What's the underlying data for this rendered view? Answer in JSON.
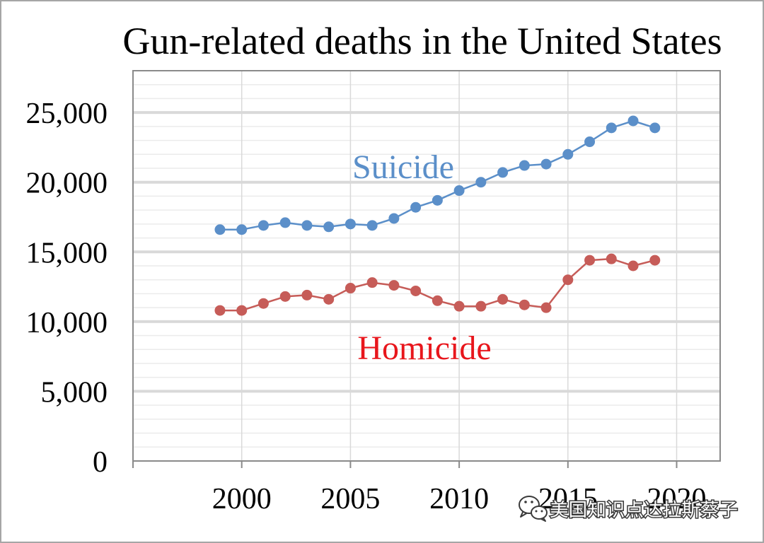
{
  "chart_data": {
    "type": "line",
    "title": "Gun-related deaths in the United States",
    "x": [
      1999,
      2000,
      2001,
      2002,
      2003,
      2004,
      2005,
      2006,
      2007,
      2008,
      2009,
      2010,
      2011,
      2012,
      2013,
      2014,
      2015,
      2016,
      2017,
      2018,
      2019
    ],
    "xlim": [
      1995,
      2022
    ],
    "ylim": [
      0,
      28000
    ],
    "x_ticks": [
      2000,
      2005,
      2010,
      2015,
      2020
    ],
    "x_tick_labels": [
      "2000",
      "2005",
      "2010",
      "2015",
      "2020"
    ],
    "y_ticks": [
      0,
      5000,
      10000,
      15000,
      20000,
      25000
    ],
    "y_tick_labels": [
      "0",
      "5,000",
      "10,000",
      "15,000",
      "20,000",
      "25,000"
    ],
    "grid": {
      "y_major_step": 5000,
      "y_minor_step": 1000,
      "x_major_step": 5
    },
    "legend": "inline",
    "series": [
      {
        "name": "Suicide",
        "color": "#5b8fc9",
        "label_color": "#5b8fc9",
        "values": [
          16600,
          16600,
          16900,
          17100,
          16900,
          16800,
          17000,
          16900,
          17400,
          18200,
          18700,
          19400,
          20000,
          20700,
          21200,
          21300,
          22000,
          22900,
          23900,
          24400,
          23900
        ]
      },
      {
        "name": "Homicide",
        "color": "#c65c58",
        "label_color": "#e8161c",
        "values": [
          10800,
          10800,
          11300,
          11800,
          11900,
          11600,
          12400,
          12800,
          12600,
          12200,
          11500,
          11100,
          11100,
          11600,
          11200,
          11000,
          13000,
          14400,
          14500,
          14000,
          14400
        ]
      }
    ],
    "colors": {
      "background": "#ffffff",
      "gridline": "#d9d9d9",
      "minor_gridline": "#ebebeb",
      "frame": "#8a8a8a",
      "border": "#a6a6a6"
    }
  },
  "watermark": {
    "icon": "wechat-icon",
    "text": "美国知识点达拉斯蔡子"
  }
}
